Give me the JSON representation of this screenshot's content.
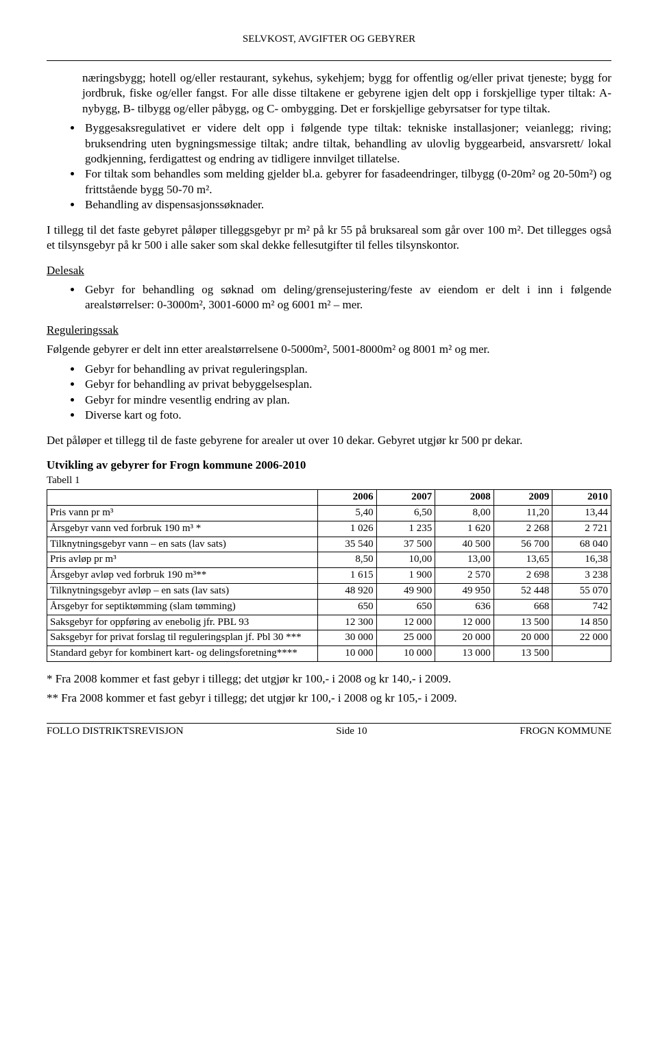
{
  "header": "SELVKOST, AVGIFTER OG GEBYRER",
  "body": {
    "continuation_para": "næringsbygg; hotell og/eller restaurant, sykehus, sykehjem; bygg for offentlig og/eller privat tjeneste; bygg for jordbruk, fiske og/eller fangst. For alle disse tiltakene er gebyrene igjen delt opp i forskjellige typer tiltak: A- nybygg, B- tilbygg og/eller påbygg, og C- ombygging. Det er forskjellige gebyrsatser for type tiltak.",
    "top_bullets": [
      "Byggesaksregulativet er videre delt opp i følgende type tiltak: tekniske installasjoner; veianlegg; riving; bruksendring uten bygningsmessige tiltak; andre tiltak, behandling av ulovlig byggearbeid, ansvarsrett/ lokal godkjenning, ferdigattest og endring av tidligere innvilget tillatelse.",
      "For tiltak som behandles som melding gjelder bl.a. gebyrer for fasadeendringer, tilbygg (0-20m² og 20-50m²) og frittstående bygg 50-70 m².",
      "Behandling av dispensasjonssøknader."
    ],
    "tillegg_para": "I tillegg til det faste gebyret påløper tilleggsgebyr pr m² på kr 55 på bruksareal som går over 100 m². Det tillegges også et tilsynsgebyr på kr 500 i alle saker som skal dekke fellesutgifter til felles tilsynskontor.",
    "delesak_heading": "Delesak",
    "delesak_bullets": [
      "Gebyr for behandling og søknad om deling/grensejustering/feste av eiendom er delt i inn i følgende arealstørrelser: 0-3000m², 3001-6000 m² og 6001 m² – mer."
    ],
    "reguleringssak_heading": "Reguleringssak",
    "reguleringssak_intro": "Følgende gebyrer er delt inn etter arealstørrelsene 0-5000m², 5001-8000m² og 8001 m² og mer.",
    "reguleringssak_bullets": [
      "Gebyr for behandling av privat reguleringsplan.",
      "Gebyr for behandling av privat bebyggelsesplan.",
      "Gebyr for mindre vesentlig endring av plan.",
      "Diverse kart og foto."
    ],
    "pahoyer_para": "Det påløper et tillegg til de faste gebyrene for arealer ut over 10 dekar. Gebyret utgjør kr 500 pr dekar.",
    "table_title": "Utvikling av gebyrer for Frogn kommune 2006-2010",
    "table_caption": "Tabell 1",
    "footnote1": "* Fra 2008 kommer et fast gebyr i tillegg; det utgjør kr 100,- i 2008 og kr 140,- i 2009.",
    "footnote2": "** Fra 2008 kommer et fast gebyr i tillegg; det utgjør kr 100,- i 2008 og kr 105,- i 2009."
  },
  "table": {
    "columns": [
      "",
      "2006",
      "2007",
      "2008",
      "2009",
      "2010"
    ],
    "col_widths": [
      "48%",
      "10.4%",
      "10.4%",
      "10.4%",
      "10.4%",
      "10.4%"
    ],
    "rows": [
      {
        "label": "Pris vann pr m³",
        "values": [
          "5,40",
          "6,50",
          "8,00",
          "11,20",
          "13,44"
        ]
      },
      {
        "label": "Årsgebyr vann ved forbruk 190 m³ *",
        "values": [
          "1 026",
          "1 235",
          "1 620",
          "2 268",
          "2 721"
        ]
      },
      {
        "label": "Tilknytningsgebyr vann – en sats (lav sats)",
        "values": [
          "35 540",
          "37 500",
          "40 500",
          "56 700",
          "68 040"
        ]
      },
      {
        "label": "Pris avløp pr m³",
        "values": [
          "8,50",
          "10,00",
          "13,00",
          "13,65",
          "16,38"
        ]
      },
      {
        "label": "Årsgebyr avløp ved forbruk 190 m³**",
        "values": [
          "1 615",
          "1 900",
          "2 570",
          "2 698",
          "3 238"
        ]
      },
      {
        "label": "Tilknytningsgebyr avløp – en sats (lav sats)",
        "values": [
          "48 920",
          "49 900",
          "49 950",
          "52 448",
          "55 070"
        ]
      },
      {
        "label": "Årsgebyr for septiktømming (slam tømming)",
        "values": [
          "650",
          "650",
          "636",
          "668",
          "742"
        ]
      },
      {
        "label": "Saksgebyr for oppføring av enebolig jfr. PBL 93",
        "values": [
          "12 300",
          "12 000",
          "12 000",
          "13 500",
          "14 850"
        ]
      },
      {
        "label": "Saksgebyr for privat forslag til reguleringsplan jf. Pbl 30 ***",
        "values": [
          "30 000",
          "25 000",
          "20 000",
          "20 000",
          "22 000"
        ]
      },
      {
        "label": "Standard gebyr for kombinert kart- og delingsforetning****",
        "values": [
          "10 000",
          "10 000",
          "13 000",
          "13 500",
          ""
        ]
      }
    ]
  },
  "footer": {
    "left": "FOLLO DISTRIKTSREVISJON",
    "center": "Side 10",
    "right": "FROGN KOMMUNE"
  }
}
